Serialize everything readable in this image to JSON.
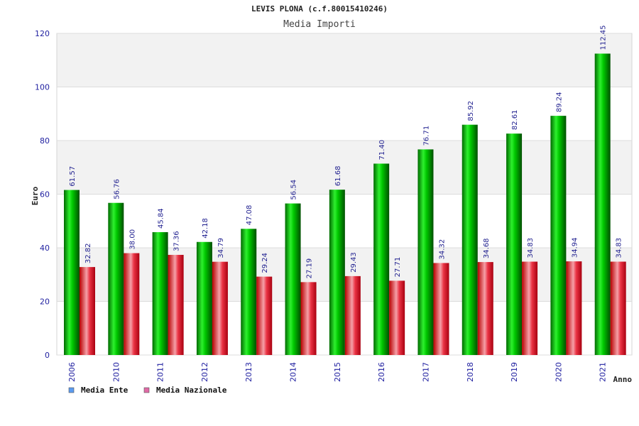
{
  "chart_data": {
    "type": "bar",
    "title": "LEVIS PLONA (c.f.80015410246)",
    "subtitle": "Media Importi",
    "xlabel": "Anno",
    "ylabel": "Euro",
    "ylim": [
      0,
      120
    ],
    "yticks": [
      0,
      20,
      40,
      60,
      80,
      100,
      120
    ],
    "categories": [
      "2006",
      "2010",
      "2011",
      "2012",
      "2013",
      "2014",
      "2015",
      "2016",
      "2017",
      "2018",
      "2019",
      "2020",
      "2021"
    ],
    "series": [
      {
        "name": "Media Ente",
        "values": [
          61.57,
          56.76,
          45.84,
          42.18,
          47.08,
          56.54,
          61.68,
          71.4,
          76.71,
          85.92,
          82.61,
          89.24,
          112.45
        ],
        "labels": [
          "61.57",
          "56.76",
          "45.84",
          "42.18",
          "47.08",
          "56.54",
          "61.68",
          "71.40",
          "76.71",
          "85.92",
          "82.61",
          "89.24",
          "112.45"
        ],
        "bar_color": "#00b400",
        "legend_color": "#5b9bf0"
      },
      {
        "name": "Media Nazionale",
        "values": [
          32.82,
          38.0,
          37.36,
          34.79,
          29.24,
          27.19,
          29.43,
          27.71,
          34.32,
          34.68,
          34.83,
          34.94,
          34.83
        ],
        "labels": [
          "32.82",
          "38.00",
          "37.36",
          "34.79",
          "29.24",
          "27.19",
          "29.43",
          "27.71",
          "34.32",
          "34.68",
          "34.83",
          "34.94",
          "34.83"
        ],
        "bar_color": "#e8102a",
        "legend_color": "#e06aa6"
      }
    ],
    "grid": true,
    "legend_position": "bottom-left"
  }
}
